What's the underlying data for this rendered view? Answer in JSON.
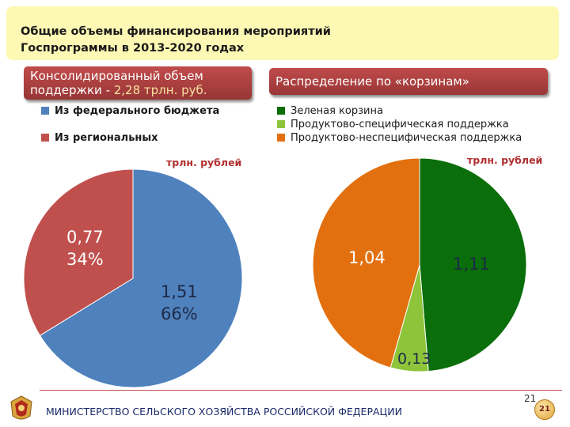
{
  "header": {
    "title_line1": "Общие объемы финансирования мероприятий",
    "title_line2": "Госпрограммы в 2013-2020 годах"
  },
  "left_panel": {
    "ribbon_line1": "Консолидированный объем",
    "ribbon_line2_prefix": "поддержки - ",
    "ribbon_line2_value": "2,28 трлн. руб.",
    "unit": "трлн. рублей"
  },
  "right_panel": {
    "ribbon": "Распределение по «корзинам»",
    "unit": "трлн. рублей"
  },
  "chart_data": [
    {
      "type": "pie",
      "title": "Консолидированный объем поддержки - 2,28 трлн. руб.",
      "unit": "трлн. рублей",
      "slices": [
        {
          "label": "Из федерального бюджета",
          "value": 1.51,
          "percent": 66,
          "value_text": "1,51",
          "percent_text": "66%",
          "color": "#4f81bd"
        },
        {
          "label": "Из региональных",
          "value": 0.77,
          "percent": 34,
          "value_text": "0,77",
          "percent_text": "34%",
          "color": "#c0504d"
        }
      ]
    },
    {
      "type": "pie",
      "title": "Распределение по «корзинам»",
      "unit": "трлн. рублей",
      "slices": [
        {
          "label": "Зеленая корзина",
          "value": 1.11,
          "value_text": "1,11",
          "color": "#0a6e0a"
        },
        {
          "label": "Продуктово-специфическая поддержка",
          "value": 0.13,
          "value_text": "0,13",
          "color": "#8dc43a"
        },
        {
          "label": "Продуктово-неспецифическая поддержка",
          "value": 1.04,
          "value_text": "1,04",
          "color": "#e2700f"
        }
      ]
    }
  ],
  "footer": {
    "ministry": "МИНИСТЕРСТВО СЕЛЬСКОГО ХОЗЯЙСТВА РОССИЙСКОЙ ФЕДЕРАЦИИ",
    "page_number": "21",
    "badge": "21"
  }
}
